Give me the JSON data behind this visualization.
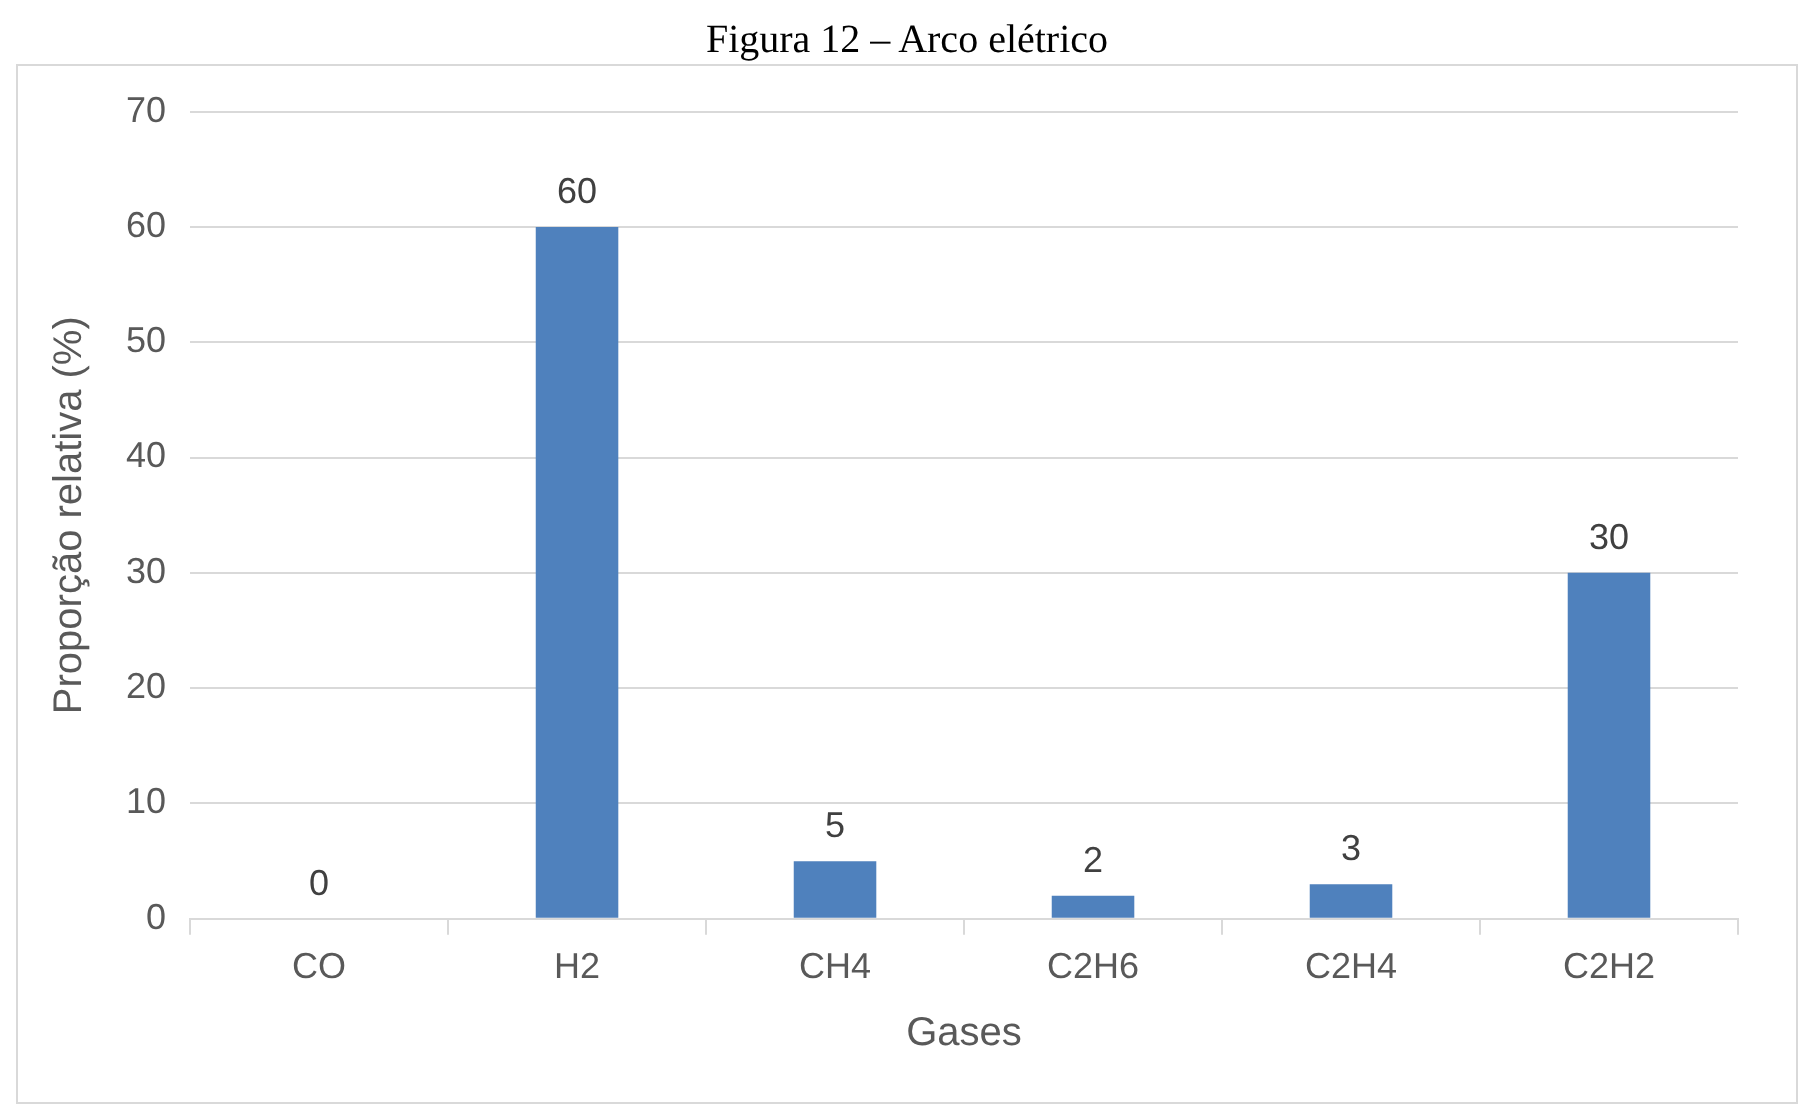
{
  "chart_data": {
    "type": "bar",
    "title": "Figura 12 – Arco elétrico",
    "xlabel": "Gases",
    "ylabel": "Proporção relativa (%)",
    "categories": [
      "CO",
      "H2",
      "CH4",
      "C2H6",
      "C2H4",
      "C2H2"
    ],
    "values": [
      0,
      60,
      5,
      2,
      3,
      30
    ],
    "color": "#4f81bd",
    "ylim": [
      0,
      70
    ],
    "yticks": [
      0,
      10,
      20,
      30,
      40,
      50,
      60,
      70
    ],
    "grid": "y",
    "data_labels": true
  }
}
